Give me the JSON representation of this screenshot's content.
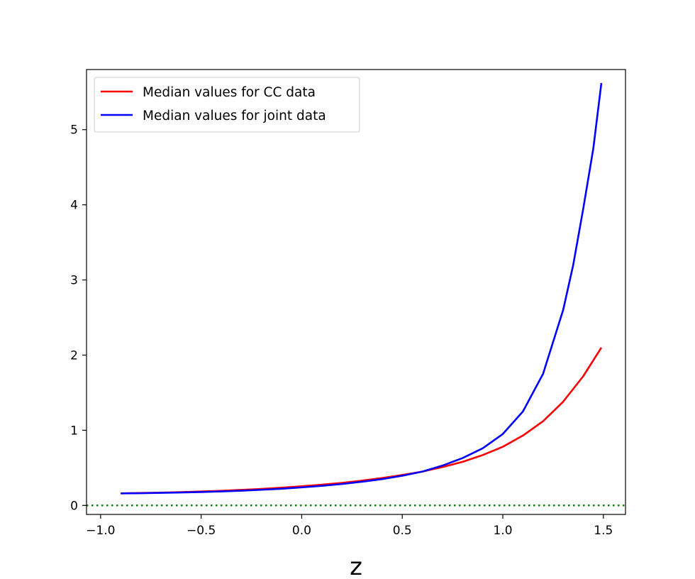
{
  "chart_data": {
    "type": "line",
    "xlabel": "z",
    "ylabel": "",
    "title": "",
    "xlim": [
      -1.07,
      1.61
    ],
    "ylim": [
      -0.12,
      5.8
    ],
    "xticks": [
      -1.0,
      -0.5,
      0.0,
      0.5,
      1.0,
      1.5
    ],
    "xtick_labels": [
      "−1.0",
      "−0.5",
      "0.0",
      "0.5",
      "1.0",
      "1.5"
    ],
    "yticks": [
      0,
      1,
      2,
      3,
      4,
      5
    ],
    "ytick_labels": [
      "0",
      "1",
      "2",
      "3",
      "4",
      "5"
    ],
    "legend_position": "top-left",
    "grid": false,
    "series": [
      {
        "name": "Median values for CC data",
        "color": "#ff0000",
        "x": [
          -0.9,
          -0.8,
          -0.7,
          -0.6,
          -0.5,
          -0.4,
          -0.3,
          -0.2,
          -0.1,
          0.0,
          0.1,
          0.2,
          0.3,
          0.4,
          0.5,
          0.6,
          0.7,
          0.8,
          0.9,
          1.0,
          1.1,
          1.2,
          1.3,
          1.4,
          1.49
        ],
        "y": [
          0.16,
          0.165,
          0.17,
          0.177,
          0.185,
          0.195,
          0.207,
          0.22,
          0.236,
          0.255,
          0.276,
          0.3,
          0.33,
          0.365,
          0.405,
          0.45,
          0.51,
          0.58,
          0.67,
          0.78,
          0.93,
          1.12,
          1.38,
          1.72,
          2.1
        ]
      },
      {
        "name": "Median values for joint data",
        "color": "#0000ff",
        "x": [
          -0.9,
          -0.8,
          -0.7,
          -0.6,
          -0.5,
          -0.4,
          -0.3,
          -0.2,
          -0.1,
          0.0,
          0.1,
          0.2,
          0.3,
          0.4,
          0.5,
          0.6,
          0.7,
          0.8,
          0.9,
          1.0,
          1.1,
          1.2,
          1.3,
          1.35,
          1.4,
          1.45,
          1.49
        ],
        "y": [
          0.16,
          0.163,
          0.167,
          0.172,
          0.178,
          0.186,
          0.196,
          0.208,
          0.222,
          0.24,
          0.26,
          0.285,
          0.315,
          0.35,
          0.395,
          0.45,
          0.53,
          0.63,
          0.76,
          0.95,
          1.25,
          1.75,
          2.6,
          3.2,
          3.95,
          4.75,
          5.62
        ]
      },
      {
        "name": "",
        "color": "#008000",
        "style": "dotted",
        "x": [
          -1.07,
          1.61
        ],
        "y": [
          0,
          0
        ]
      }
    ]
  }
}
